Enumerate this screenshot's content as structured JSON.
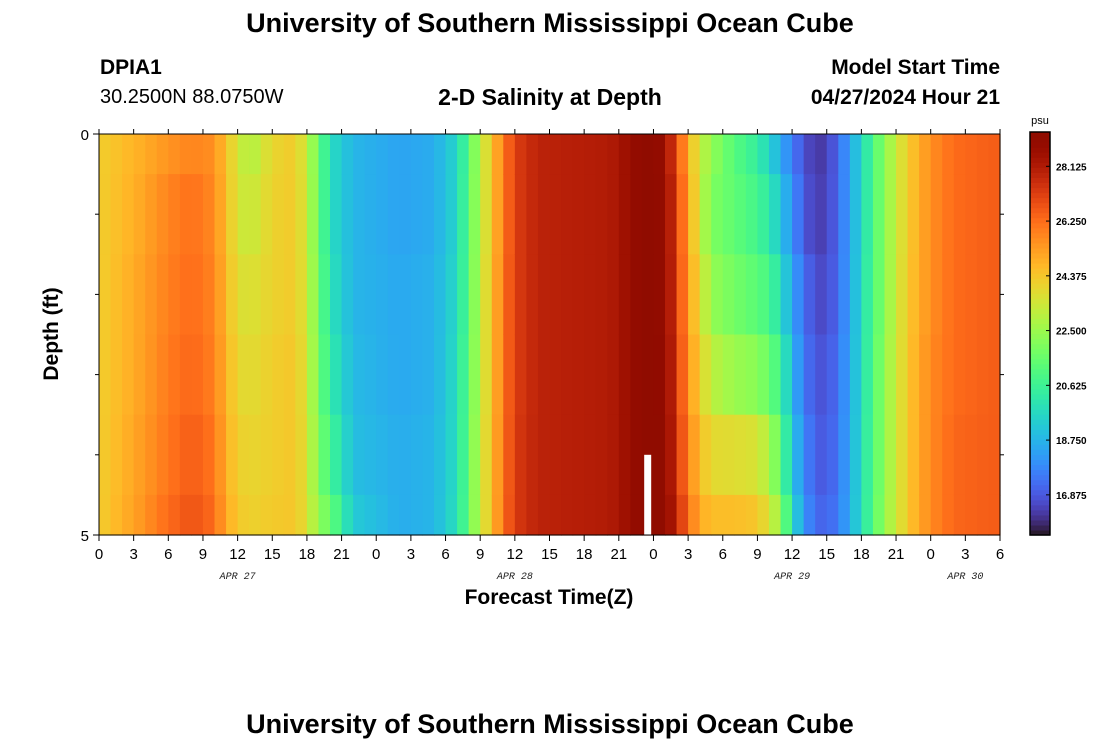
{
  "header": {
    "title": "University of Southern Mississippi Ocean Cube",
    "station_id": "DPIA1",
    "coordinates": "30.2500N  88.0750W",
    "plot_title": "2-D Salinity at Depth",
    "model_start_label": "Model Start Time",
    "model_start_value": "04/27/2024 Hour 21"
  },
  "footer": {
    "title": "University of Southern Mississippi Ocean Cube"
  },
  "chart_data": {
    "type": "heatmap",
    "title": "2-D Salinity at Depth",
    "xlabel": "Forecast Time(Z)",
    "ylabel": "Depth (ft)",
    "x_tick_labels": [
      "0",
      "3",
      "6",
      "9",
      "12",
      "15",
      "18",
      "21",
      "0",
      "3",
      "6",
      "9",
      "12",
      "15",
      "18",
      "21",
      "0",
      "3",
      "6",
      "9",
      "12",
      "15",
      "18",
      "21",
      "0",
      "3",
      "6"
    ],
    "date_labels": [
      {
        "text": "APR 27",
        "hour": 12
      },
      {
        "text": "APR 28",
        "hour": 36
      },
      {
        "text": "APR 29",
        "hour": 60
      },
      {
        "text": "APR 30",
        "hour": 75
      }
    ],
    "xlim_hours": [
      0,
      78
    ],
    "ylim": [
      0,
      5
    ],
    "y_tick_labels": [
      "0",
      "5"
    ],
    "y_minor_ticks": [
      1,
      2,
      3,
      4
    ],
    "colorbar": {
      "unit": "psu",
      "min": 15.5,
      "max": 29.3,
      "tick_values": [
        28.125,
        26.25,
        24.375,
        22.5,
        20.625,
        18.75,
        16.875
      ],
      "tick_labels": [
        "28.125",
        "26.250",
        "24.375",
        "22.500",
        "20.625",
        "18.750",
        "16.875"
      ],
      "colormap": "turbo"
    },
    "time_step_hours": 1,
    "depth_bands_ft": [
      [
        0,
        0.5
      ],
      [
        0.5,
        1.5
      ],
      [
        1.5,
        2.5
      ],
      [
        2.5,
        3.5
      ],
      [
        3.5,
        4.5
      ],
      [
        4.5,
        5
      ]
    ],
    "salinity_keyframes_psu": [
      {
        "hour": 0,
        "bands": [
          24.2,
          24.2,
          24.2,
          24.2,
          24.2,
          24.2
        ]
      },
      {
        "hour": 3,
        "bands": [
          24.8,
          24.9,
          25.0,
          25.0,
          25.1,
          25.2
        ]
      },
      {
        "hour": 6,
        "bands": [
          25.5,
          25.8,
          25.9,
          26.0,
          26.1,
          26.3
        ]
      },
      {
        "hour": 8,
        "bands": [
          25.8,
          26.2,
          26.3,
          26.4,
          26.6,
          26.8
        ]
      },
      {
        "hour": 10,
        "bands": [
          25.6,
          25.7,
          25.8,
          25.9,
          26.1,
          26.3
        ]
      },
      {
        "hour": 11,
        "bands": [
          24.5,
          24.6,
          24.7,
          24.8,
          24.9,
          25.0
        ]
      },
      {
        "hour": 12,
        "bands": [
          23.6,
          23.6,
          23.8,
          24.0,
          24.2,
          24.4
        ]
      },
      {
        "hour": 13,
        "bands": [
          22.8,
          23.2,
          23.6,
          23.8,
          24.0,
          24.1
        ]
      },
      {
        "hour": 15,
        "bands": [
          24.0,
          24.1,
          24.1,
          24.2,
          24.2,
          24.3
        ]
      },
      {
        "hour": 17,
        "bands": [
          24.3,
          24.3,
          24.3,
          24.4,
          24.4,
          24.4
        ]
      },
      {
        "hour": 18,
        "bands": [
          23.2,
          23.3,
          23.4,
          23.5,
          23.6,
          23.7
        ]
      },
      {
        "hour": 19,
        "bands": [
          21.6,
          21.6,
          21.7,
          21.8,
          22.0,
          22.3
        ]
      },
      {
        "hour": 20,
        "bands": [
          19.8,
          19.8,
          20.0,
          20.3,
          20.8,
          21.6
        ]
      },
      {
        "hour": 22,
        "bands": [
          18.8,
          18.8,
          18.8,
          18.9,
          19.0,
          19.3
        ]
      },
      {
        "hour": 26,
        "bands": [
          18.4,
          18.4,
          18.5,
          18.5,
          18.6,
          18.6
        ]
      },
      {
        "hour": 29,
        "bands": [
          18.6,
          18.6,
          18.7,
          18.7,
          18.8,
          18.8
        ]
      },
      {
        "hour": 31,
        "bands": [
          19.6,
          19.6,
          19.7,
          19.8,
          19.8,
          19.9
        ]
      },
      {
        "hour": 32,
        "bands": [
          21.2,
          21.3,
          21.3,
          21.4,
          21.5,
          21.5
        ]
      },
      {
        "hour": 33,
        "bands": [
          23.0,
          23.0,
          23.1,
          23.1,
          23.2,
          23.2
        ]
      },
      {
        "hour": 34,
        "bands": [
          24.4,
          24.4,
          24.5,
          24.5,
          24.6,
          24.6
        ]
      },
      {
        "hour": 35,
        "bands": [
          26.0,
          26.0,
          26.1,
          26.1,
          26.1,
          26.2
        ]
      },
      {
        "hour": 36,
        "bands": [
          27.2,
          27.2,
          27.2,
          27.2,
          27.3,
          27.3
        ]
      },
      {
        "hour": 38,
        "bands": [
          27.9,
          27.9,
          27.9,
          27.9,
          27.9,
          27.9
        ]
      },
      {
        "hour": 44,
        "bands": [
          28.1,
          28.1,
          28.1,
          28.1,
          28.1,
          28.1
        ]
      },
      {
        "hour": 45,
        "bands": [
          28.3,
          28.3,
          28.3,
          28.3,
          28.3,
          28.3
        ]
      },
      {
        "hour": 46,
        "bands": [
          28.8,
          28.8,
          28.8,
          28.8,
          28.8,
          28.8
        ]
      },
      {
        "hour": 47,
        "bands": [
          29.1,
          29.1,
          29.1,
          29.1,
          29.1,
          29.1
        ]
      },
      {
        "hour": 48,
        "bands": [
          29.3,
          29.3,
          29.3,
          29.3,
          29.3,
          29.3
        ]
      },
      {
        "hour": 49,
        "bands": [
          28.6,
          28.8,
          28.8,
          28.9,
          29.0,
          29.1
        ]
      },
      {
        "hour": 50,
        "bands": [
          27.0,
          27.2,
          27.3,
          27.4,
          27.5,
          27.8
        ]
      },
      {
        "hour": 51,
        "bands": [
          25.0,
          25.3,
          25.4,
          25.6,
          25.9,
          26.3
        ]
      },
      {
        "hour": 52,
        "bands": [
          23.3,
          23.3,
          23.8,
          24.2,
          24.6,
          25.0
        ]
      },
      {
        "hour": 53,
        "bands": [
          22.4,
          22.0,
          22.4,
          23.1,
          23.9,
          24.6
        ]
      },
      {
        "hour": 55,
        "bands": [
          21.2,
          21.4,
          21.8,
          22.5,
          23.8,
          24.6
        ]
      },
      {
        "hour": 57,
        "bands": [
          20.4,
          20.8,
          21.3,
          22.2,
          23.6,
          24.4
        ]
      },
      {
        "hour": 58,
        "bands": [
          19.6,
          20.2,
          20.9,
          21.6,
          22.8,
          23.6
        ]
      },
      {
        "hour": 59,
        "bands": [
          18.6,
          19.2,
          19.9,
          20.7,
          21.4,
          22.4
        ]
      },
      {
        "hour": 60,
        "bands": [
          17.6,
          18.0,
          18.4,
          18.8,
          19.2,
          19.8
        ]
      },
      {
        "hour": 61,
        "bands": [
          16.8,
          17.0,
          17.4,
          17.6,
          17.9,
          18.2
        ]
      },
      {
        "hour": 62,
        "bands": [
          16.2,
          16.3,
          16.6,
          16.8,
          17.0,
          17.2
        ]
      },
      {
        "hour": 63,
        "bands": [
          16.4,
          16.5,
          16.6,
          16.8,
          16.9,
          17.1
        ]
      },
      {
        "hour": 64,
        "bands": [
          17.2,
          17.2,
          17.3,
          17.4,
          17.5,
          17.6
        ]
      },
      {
        "hour": 65,
        "bands": [
          18.4,
          18.4,
          18.4,
          18.5,
          18.5,
          18.6
        ]
      },
      {
        "hour": 66,
        "bands": [
          19.6,
          19.6,
          19.7,
          19.7,
          19.8,
          19.8
        ]
      },
      {
        "hour": 67,
        "bands": [
          21.0,
          21.0,
          21.0,
          21.1,
          21.1,
          21.2
        ]
      },
      {
        "hour": 68,
        "bands": [
          22.2,
          22.2,
          22.2,
          22.3,
          22.3,
          22.4
        ]
      },
      {
        "hour": 69,
        "bands": [
          23.3,
          23.3,
          23.3,
          23.4,
          23.4,
          23.4
        ]
      },
      {
        "hour": 70,
        "bands": [
          24.2,
          24.2,
          24.3,
          24.3,
          24.3,
          24.3
        ]
      },
      {
        "hour": 71,
        "bands": [
          25.0,
          25.0,
          25.0,
          25.1,
          25.1,
          25.1
        ]
      },
      {
        "hour": 72,
        "bands": [
          25.6,
          25.6,
          25.6,
          25.7,
          25.7,
          25.7
        ]
      },
      {
        "hour": 74,
        "bands": [
          26.3,
          26.3,
          26.3,
          26.3,
          26.4,
          26.4
        ]
      },
      {
        "hour": 78,
        "bands": [
          26.6,
          26.6,
          26.6,
          26.6,
          26.6,
          26.6
        ]
      }
    ],
    "missing_data": {
      "hour": 47.5,
      "depth_from": 4.0,
      "depth_to": 5.0
    }
  }
}
